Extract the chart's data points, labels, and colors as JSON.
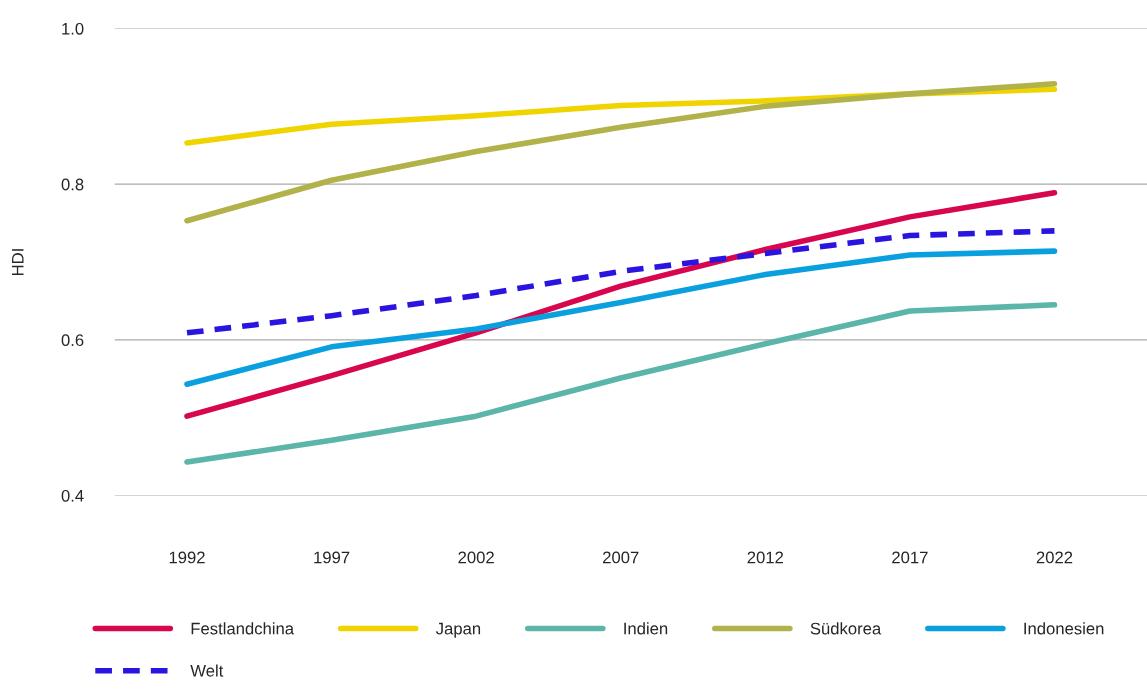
{
  "chart_data": {
    "type": "line",
    "ylabel": "HDI",
    "x": [
      1992,
      1997,
      2002,
      2007,
      2012,
      2017,
      2022
    ],
    "xlim": [
      1989.5,
      2025.2
    ],
    "xticks": [
      1992,
      1997,
      2002,
      2007,
      2012,
      2017,
      2022
    ],
    "ylim": [
      0.4,
      1.0
    ],
    "yticks": [
      {
        "value": 0.4,
        "label": "0.4"
      },
      {
        "value": 0.6,
        "label": "0.6"
      },
      {
        "value": 0.8,
        "label": "0.8"
      },
      {
        "value": 1.0,
        "label": "1.0"
      }
    ],
    "grid": "y",
    "legend": "bottom",
    "marker": "none",
    "series": [
      {
        "name": "Festlandchina",
        "color": "#d7064f",
        "values": [
          0.502,
          0.554,
          0.609,
          0.669,
          0.716,
          0.758,
          0.789
        ]
      },
      {
        "name": "Japan",
        "color": "#f0d400",
        "values": [
          0.853,
          0.877,
          0.888,
          0.901,
          0.907,
          0.916,
          0.922
        ]
      },
      {
        "name": "Indien",
        "color": "#5bb5a8",
        "values": [
          0.443,
          0.471,
          0.502,
          0.551,
          0.595,
          0.637,
          0.645
        ]
      },
      {
        "name": "Südkorea",
        "color": "#b2b24a",
        "values": [
          0.753,
          0.805,
          0.842,
          0.873,
          0.9,
          0.916,
          0.929
        ]
      },
      {
        "name": "Indonesien",
        "color": "#0aa0e0",
        "values": [
          0.543,
          0.591,
          0.614,
          0.648,
          0.684,
          0.709,
          0.714
        ]
      },
      {
        "name": "Welt",
        "color": "#2a14e0",
        "line_style": "dashed",
        "values": [
          0.609,
          0.631,
          0.657,
          0.688,
          0.711,
          0.734,
          0.74
        ]
      }
    ]
  }
}
